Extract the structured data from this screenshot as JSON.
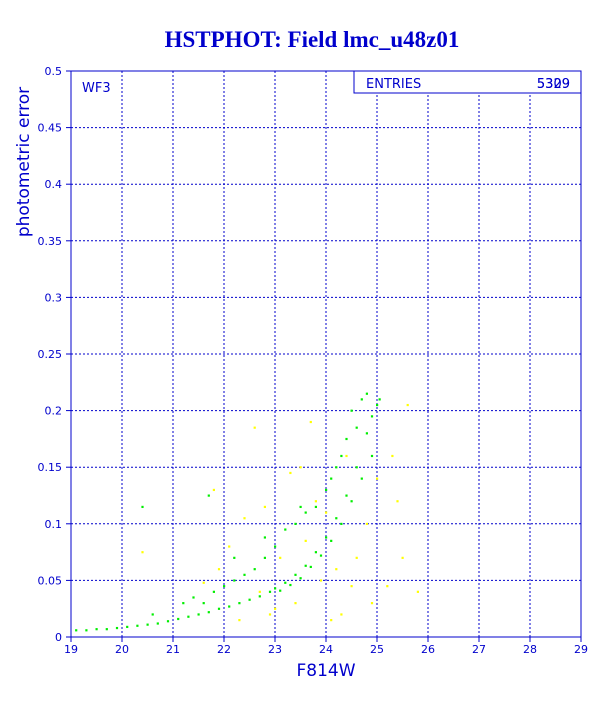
{
  "chart_data": {
    "type": "scatter",
    "title": "HSTPHOT: Field lmc_u48z01",
    "xlabel": "F814W",
    "ylabel": "photometric error",
    "xlim": [
      19,
      29
    ],
    "ylim": [
      0,
      0.5
    ],
    "x_ticks": [
      "19",
      "20",
      "21",
      "22",
      "23",
      "24",
      "25",
      "26",
      "27",
      "28",
      "29"
    ],
    "y_ticks": [
      "0",
      "0.05",
      "0.1",
      "0.15",
      "0.2",
      "0.25",
      "0.3",
      "0.35",
      "0.4",
      "0.45",
      "0.5"
    ],
    "grid": true,
    "panel_label": "WF3",
    "stats_box": {
      "label": "ENTRIES",
      "values": [
        "5329",
        "5309"
      ]
    },
    "series": [
      {
        "color": "#00ee00",
        "points": [
          [
            19.1,
            0.006
          ],
          [
            19.3,
            0.006
          ],
          [
            19.5,
            0.007
          ],
          [
            19.7,
            0.007
          ],
          [
            19.9,
            0.008
          ],
          [
            20.1,
            0.009
          ],
          [
            20.3,
            0.01
          ],
          [
            20.5,
            0.011
          ],
          [
            20.7,
            0.012
          ],
          [
            20.9,
            0.014
          ],
          [
            21.1,
            0.016
          ],
          [
            21.3,
            0.018
          ],
          [
            21.5,
            0.02
          ],
          [
            21.7,
            0.022
          ],
          [
            21.9,
            0.025
          ],
          [
            22.1,
            0.027
          ],
          [
            22.3,
            0.03
          ],
          [
            22.5,
            0.033
          ],
          [
            22.7,
            0.036
          ],
          [
            22.9,
            0.04
          ],
          [
            23.0,
            0.043
          ],
          [
            23.2,
            0.048
          ],
          [
            23.4,
            0.055
          ],
          [
            23.6,
            0.063
          ],
          [
            23.8,
            0.075
          ],
          [
            24.0,
            0.088
          ],
          [
            24.2,
            0.105
          ],
          [
            24.4,
            0.125
          ],
          [
            24.6,
            0.15
          ],
          [
            24.8,
            0.18
          ],
          [
            24.9,
            0.195
          ],
          [
            25.0,
            0.205
          ],
          [
            25.05,
            0.21
          ],
          [
            20.4,
            0.115
          ],
          [
            20.6,
            0.02
          ],
          [
            21.2,
            0.03
          ],
          [
            21.4,
            0.035
          ],
          [
            21.6,
            0.03
          ],
          [
            21.8,
            0.04
          ],
          [
            22.0,
            0.045
          ],
          [
            22.2,
            0.05
          ],
          [
            22.4,
            0.055
          ],
          [
            22.6,
            0.06
          ],
          [
            22.8,
            0.07
          ],
          [
            23.0,
            0.08
          ],
          [
            23.2,
            0.095
          ],
          [
            23.4,
            0.1
          ],
          [
            23.6,
            0.11
          ],
          [
            23.8,
            0.115
          ],
          [
            24.0,
            0.13
          ],
          [
            24.2,
            0.15
          ],
          [
            24.4,
            0.175
          ],
          [
            24.5,
            0.2
          ],
          [
            24.7,
            0.21
          ],
          [
            21.7,
            0.125
          ],
          [
            22.2,
            0.07
          ],
          [
            22.8,
            0.088
          ],
          [
            23.5,
            0.115
          ],
          [
            24.1,
            0.14
          ],
          [
            24.3,
            0.16
          ],
          [
            24.6,
            0.185
          ],
          [
            24.8,
            0.215
          ],
          [
            24.9,
            0.16
          ],
          [
            24.7,
            0.14
          ],
          [
            24.5,
            0.12
          ],
          [
            24.3,
            0.1
          ],
          [
            24.1,
            0.085
          ],
          [
            23.9,
            0.072
          ],
          [
            23.7,
            0.062
          ],
          [
            23.5,
            0.052
          ],
          [
            23.3,
            0.046
          ],
          [
            23.1,
            0.041
          ]
        ]
      },
      {
        "color": "#ffff00",
        "points": [
          [
            20.4,
            0.075
          ],
          [
            21.8,
            0.13
          ],
          [
            21.6,
            0.048
          ],
          [
            22.1,
            0.08
          ],
          [
            22.4,
            0.105
          ],
          [
            22.6,
            0.185
          ],
          [
            22.8,
            0.115
          ],
          [
            22.9,
            0.02
          ],
          [
            23.1,
            0.07
          ],
          [
            23.3,
            0.145
          ],
          [
            23.4,
            0.03
          ],
          [
            23.6,
            0.085
          ],
          [
            23.7,
            0.19
          ],
          [
            23.9,
            0.05
          ],
          [
            24.0,
            0.11
          ],
          [
            24.2,
            0.06
          ],
          [
            24.3,
            0.02
          ],
          [
            24.5,
            0.045
          ],
          [
            24.6,
            0.07
          ],
          [
            24.8,
            0.1
          ],
          [
            25.0,
            0.14
          ],
          [
            25.2,
            0.045
          ],
          [
            25.3,
            0.16
          ],
          [
            25.5,
            0.07
          ],
          [
            25.6,
            0.205
          ],
          [
            25.8,
            0.04
          ],
          [
            24.4,
            0.16
          ],
          [
            23.0,
            0.025
          ],
          [
            22.7,
            0.04
          ],
          [
            23.5,
            0.15
          ],
          [
            24.1,
            0.015
          ],
          [
            25.4,
            0.12
          ],
          [
            21.9,
            0.06
          ],
          [
            22.3,
            0.015
          ],
          [
            23.8,
            0.12
          ],
          [
            24.9,
            0.03
          ]
        ]
      }
    ]
  }
}
